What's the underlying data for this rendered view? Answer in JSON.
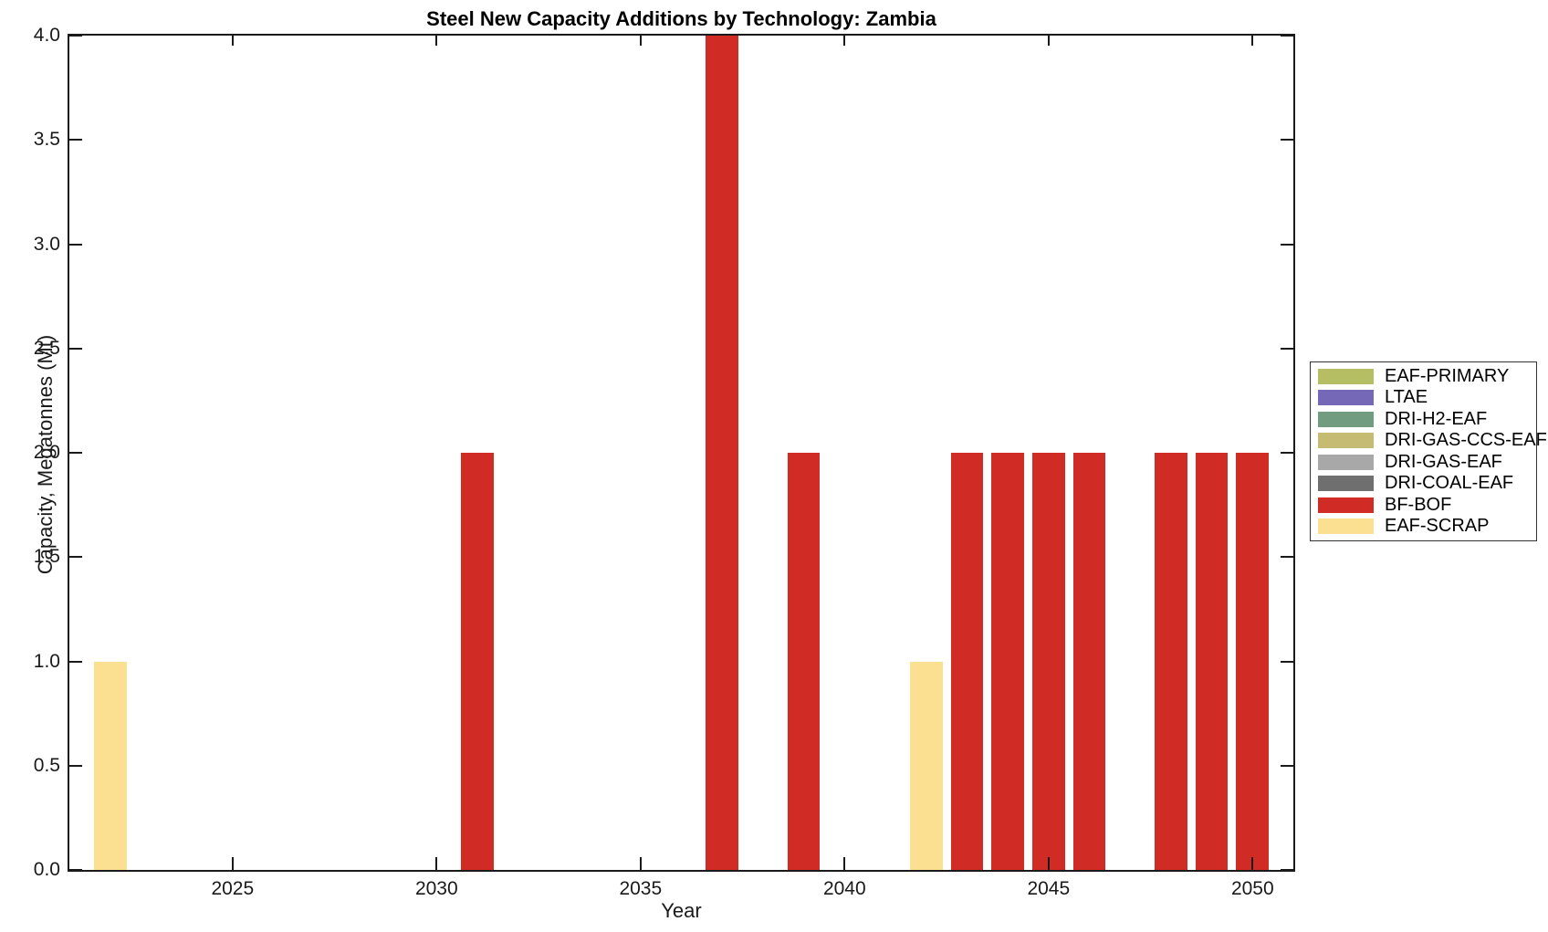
{
  "chart_data": {
    "type": "bar",
    "title": "Steel New Capacity Additions by Technology: Zambia",
    "xlabel": "Year",
    "ylabel": "Capacity, Megatonnes (Mt)",
    "xlim": [
      2021,
      2051
    ],
    "ylim": [
      0,
      4
    ],
    "xticks": [
      2025,
      2030,
      2035,
      2040,
      2045,
      2050
    ],
    "yticks": [
      0,
      0.5,
      1,
      1.5,
      2,
      2.5,
      3,
      3.5,
      4
    ],
    "ytick_labels": [
      "0.0",
      "0.5",
      "1.0",
      "1.5",
      "2.0",
      "2.5",
      "3.0",
      "3.5",
      "4.0"
    ],
    "grid": false,
    "bar_width_years": 0.8,
    "legend_position": "right-outside",
    "legend": [
      {
        "label": "EAF-PRIMARY",
        "color": "#B5BE62"
      },
      {
        "label": "LTAE",
        "color": "#7568B7"
      },
      {
        "label": "DRI-H2-EAF",
        "color": "#729C80"
      },
      {
        "label": "DRI-GAS-CCS-EAF",
        "color": "#C5BB72"
      },
      {
        "label": "DRI-GAS-EAF",
        "color": "#A8A8A8"
      },
      {
        "label": "DRI-COAL-EAF",
        "color": "#6F6F6F"
      },
      {
        "label": "BF-BOF",
        "color": "#D02B24"
      },
      {
        "label": "EAF-SCRAP",
        "color": "#FCE092"
      }
    ],
    "bars": [
      {
        "year": 2022,
        "value": 1.0,
        "tech": "EAF-SCRAP"
      },
      {
        "year": 2031,
        "value": 2.0,
        "tech": "BF-BOF"
      },
      {
        "year": 2037,
        "value": 4.0,
        "tech": "BF-BOF"
      },
      {
        "year": 2039,
        "value": 2.0,
        "tech": "BF-BOF"
      },
      {
        "year": 2042,
        "value": 1.0,
        "tech": "EAF-SCRAP"
      },
      {
        "year": 2043,
        "value": 2.0,
        "tech": "BF-BOF"
      },
      {
        "year": 2044,
        "value": 2.0,
        "tech": "BF-BOF"
      },
      {
        "year": 2045,
        "value": 2.0,
        "tech": "BF-BOF"
      },
      {
        "year": 2046,
        "value": 2.0,
        "tech": "BF-BOF"
      },
      {
        "year": 2048,
        "value": 2.0,
        "tech": "BF-BOF"
      },
      {
        "year": 2049,
        "value": 2.0,
        "tech": "BF-BOF"
      },
      {
        "year": 2050,
        "value": 2.0,
        "tech": "BF-BOF"
      }
    ]
  }
}
